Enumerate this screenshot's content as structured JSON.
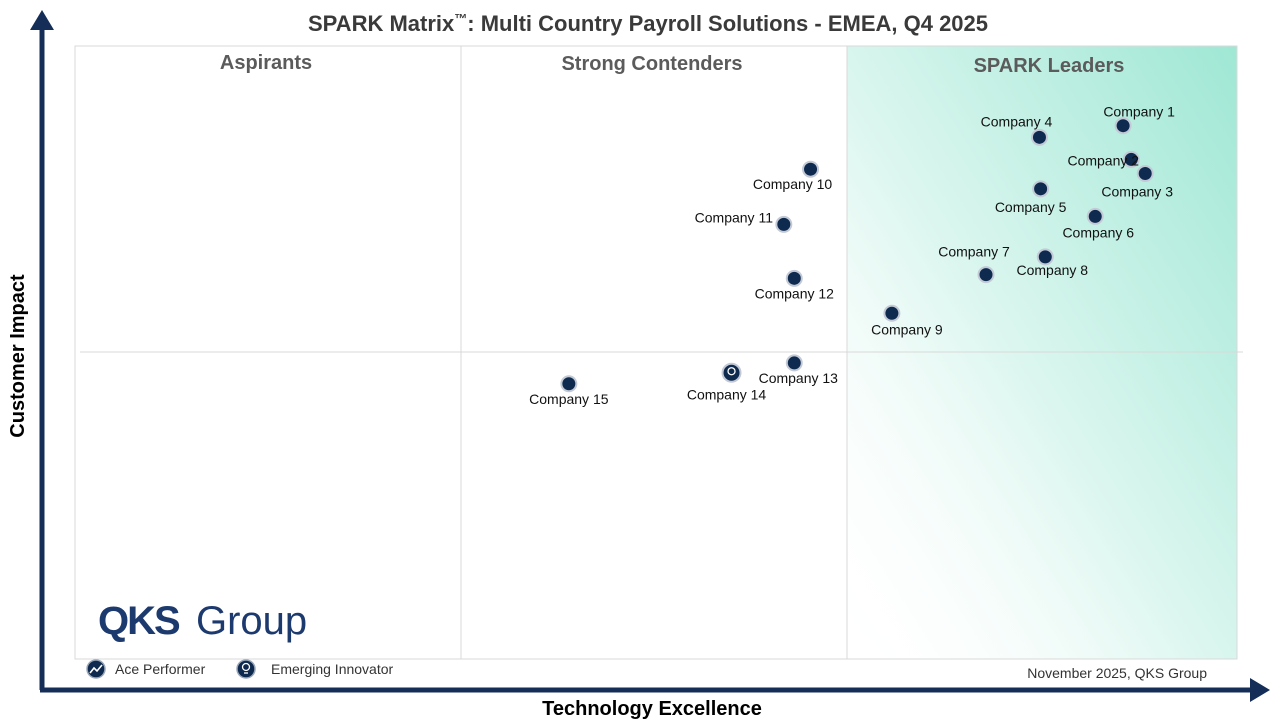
{
  "chart_data": {
    "type": "scatter",
    "title": "SPARK Matrix™: Multi Country Payroll Solutions - EMEA, Q4 2025",
    "title_main": "SPARK Matrix",
    "title_tm": "™",
    "title_rest": ": Multi Country Payroll Solutions - EMEA, Q4 2025",
    "xlabel": "Technology Excellence",
    "ylabel": "Customer Impact",
    "xlim": [
      0,
      100
    ],
    "ylim": [
      0,
      100
    ],
    "quadrants": [
      "Aspirants",
      "Strong Contenders",
      "SPARK Leaders"
    ],
    "points": [
      {
        "name": "Company 1",
        "x": 90.2,
        "y": 87.0,
        "kind": "Ace Performer"
      },
      {
        "name": "Company 2",
        "x": 90.9,
        "y": 81.5,
        "kind": "Ace Performer"
      },
      {
        "name": "Company 3",
        "x": 92.1,
        "y": 79.2,
        "kind": "Ace Performer"
      },
      {
        "name": "Company 4",
        "x": 83.0,
        "y": 85.1,
        "kind": "Ace Performer"
      },
      {
        "name": "Company 5",
        "x": 83.1,
        "y": 76.7,
        "kind": "Ace Performer"
      },
      {
        "name": "Company 6",
        "x": 87.8,
        "y": 72.2,
        "kind": "Ace Performer"
      },
      {
        "name": "Company 7",
        "x": 78.4,
        "y": 62.7,
        "kind": "Ace Performer"
      },
      {
        "name": "Company 8",
        "x": 83.5,
        "y": 65.6,
        "kind": "Ace Performer"
      },
      {
        "name": "Company 9",
        "x": 70.3,
        "y": 56.4,
        "kind": "Ace Performer"
      },
      {
        "name": "Company 10",
        "x": 63.3,
        "y": 79.9,
        "kind": "Ace Performer"
      },
      {
        "name": "Company 11",
        "x": 61.0,
        "y": 70.9,
        "kind": "Ace Performer"
      },
      {
        "name": "Company 12",
        "x": 61.9,
        "y": 62.1,
        "kind": "Ace Performer"
      },
      {
        "name": "Company 13",
        "x": 61.9,
        "y": 48.3,
        "kind": "Ace Performer"
      },
      {
        "name": "Company 14",
        "x": 56.5,
        "y": 46.7,
        "kind": "Emerging Innovator"
      },
      {
        "name": "Company 15",
        "x": 42.5,
        "y": 44.9,
        "kind": "Ace Performer"
      }
    ],
    "legend": [
      {
        "label": "Ace Performer",
        "icon": "trend-up-icon"
      },
      {
        "label": "Emerging Innovator",
        "icon": "lightbulb-icon"
      }
    ],
    "legend_position": "bottom-left",
    "grid": true,
    "colors": {
      "marker": "#0f2a4f",
      "leaders_gradient": "#9fe7d4",
      "axis": "#142e57"
    }
  },
  "brand": {
    "logo_bold": "QKS",
    "logo_light": "Group"
  },
  "footer": {
    "note": "November 2025, QKS Group"
  }
}
